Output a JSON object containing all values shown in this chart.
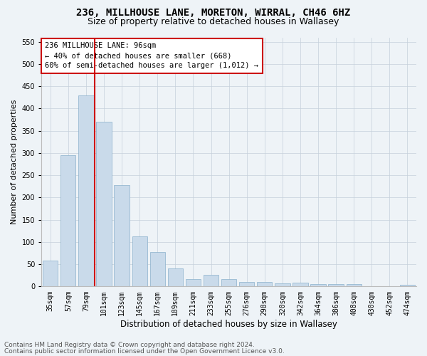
{
  "title1": "236, MILLHOUSE LANE, MORETON, WIRRAL, CH46 6HZ",
  "title2": "Size of property relative to detached houses in Wallasey",
  "xlabel": "Distribution of detached houses by size in Wallasey",
  "ylabel": "Number of detached properties",
  "categories": [
    "35sqm",
    "57sqm",
    "79sqm",
    "101sqm",
    "123sqm",
    "145sqm",
    "167sqm",
    "189sqm",
    "211sqm",
    "233sqm",
    "255sqm",
    "276sqm",
    "298sqm",
    "320sqm",
    "342sqm",
    "364sqm",
    "386sqm",
    "408sqm",
    "430sqm",
    "452sqm",
    "474sqm"
  ],
  "values": [
    58,
    295,
    430,
    370,
    228,
    113,
    78,
    40,
    16,
    27,
    16,
    10,
    10,
    7,
    8,
    5,
    5,
    5,
    0,
    0,
    4
  ],
  "bar_color": "#c9daea",
  "bar_edgecolor": "#8ab0cc",
  "vline_x": 2.5,
  "vline_color": "#cc0000",
  "annotation_line1": "236 MILLHOUSE LANE: 96sqm",
  "annotation_line2": "← 40% of detached houses are smaller (668)",
  "annotation_line3": "60% of semi-detached houses are larger (1,012) →",
  "annotation_box_facecolor": "#ffffff",
  "annotation_box_edgecolor": "#cc0000",
  "ylim_max": 560,
  "yticks": [
    0,
    50,
    100,
    150,
    200,
    250,
    300,
    350,
    400,
    450,
    500,
    550
  ],
  "footer1": "Contains HM Land Registry data © Crown copyright and database right 2024.",
  "footer2": "Contains public sector information licensed under the Open Government Licence v3.0.",
  "bg_color": "#eef3f7",
  "grid_color": "#c5d0db",
  "title1_fontsize": 10,
  "title2_fontsize": 9,
  "xlabel_fontsize": 8.5,
  "ylabel_fontsize": 8,
  "tick_fontsize": 7,
  "ann_fontsize": 7.5,
  "footer_fontsize": 6.5
}
